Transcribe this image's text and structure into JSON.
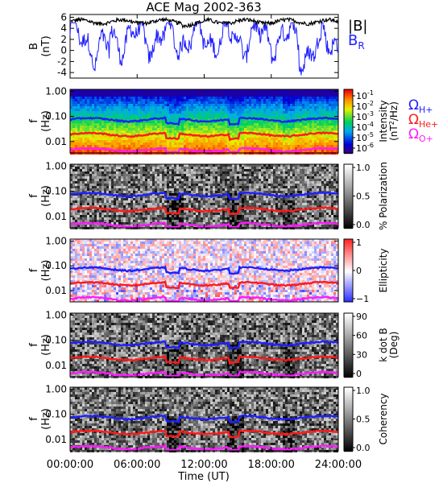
{
  "title": "ACE Mag 2002-363",
  "chart_data": {
    "type": "spectrogram-stack",
    "xlabel": "Time (UT)",
    "xticks": [
      "00:00:00",
      "06:00:00",
      "12:00:00",
      "18:00:00",
      "24:00:00"
    ],
    "xrange_hours": [
      0,
      24
    ],
    "line_panel": {
      "ylabel_line1": "B",
      "ylabel_line2": "(nT)",
      "ylim": [
        -5,
        6.5
      ],
      "yticks": [
        "6",
        "4",
        "2",
        "0",
        "-2",
        "-4"
      ],
      "ytick_values": [
        6,
        4,
        2,
        0,
        -2,
        -4
      ],
      "series": [
        {
          "name": "|B|",
          "color": "#000000",
          "approx_level_nT": 5.2
        },
        {
          "name": "B",
          "subscript": "R",
          "color": "#1f1fff",
          "approx_range_nT": [
            -4.5,
            5
          ]
        }
      ]
    },
    "spectral_panels": [
      {
        "ylabel_line1": "f",
        "ylabel_line2": "(Hz)",
        "colormap": "rainbow",
        "cbar_label_line1": "Intensity",
        "cbar_label_line2": "(nT",
        "cbar_label_sup": "2",
        "cbar_label_end": "/Hz)",
        "cbar_ticks": [
          "10",
          "10",
          "10",
          "10",
          "10",
          "10"
        ],
        "cbar_tick_exponents": [
          "-1",
          "-2",
          "-3",
          "-4",
          "-5",
          "-6"
        ]
      },
      {
        "ylabel_line1": "f",
        "ylabel_line2": "(Hz)",
        "colormap": "gray",
        "cbar_label_line1": "% Polarization",
        "cbar_ticks": [
          "1.0",
          "0.5",
          "0.0"
        ]
      },
      {
        "ylabel_line1": "f",
        "ylabel_line2": "(Hz)",
        "colormap": "bwr",
        "cbar_label_line1": "Ellipticity",
        "cbar_ticks": [
          "1",
          "0",
          "−1"
        ]
      },
      {
        "ylabel_line1": "f",
        "ylabel_line2": "(Hz)",
        "colormap": "gray",
        "cbar_label_line1": "k dot B",
        "cbar_label_line2": "(Deg)",
        "cbar_ticks": [
          "90",
          "60",
          "30",
          "0"
        ]
      },
      {
        "ylabel_line1": "f",
        "ylabel_line2": "(Hz)",
        "colormap": "gray",
        "cbar_label_line1": "Coherency",
        "cbar_ticks": [
          "1.0",
          "0.5",
          "0.0"
        ]
      }
    ],
    "freq_axis": {
      "scale": "log",
      "ylim": [
        0.0035,
        1.2
      ],
      "yticks": [
        "1.00",
        "0.10",
        "0.01"
      ],
      "ytick_values": [
        1.0,
        0.1,
        0.01
      ]
    },
    "gyrofrequency_lines": [
      {
        "name": "Ω",
        "subscript": "H+",
        "color": "#1f1fff",
        "approx_f_hz": 0.075
      },
      {
        "name": "Ω",
        "subscript": "He+",
        "color": "#ff1a1a",
        "approx_f_hz": 0.019
      },
      {
        "name": "Ω",
        "subscript": "O+",
        "color": "#ff1aff",
        "approx_f_hz": 0.0047
      }
    ]
  }
}
